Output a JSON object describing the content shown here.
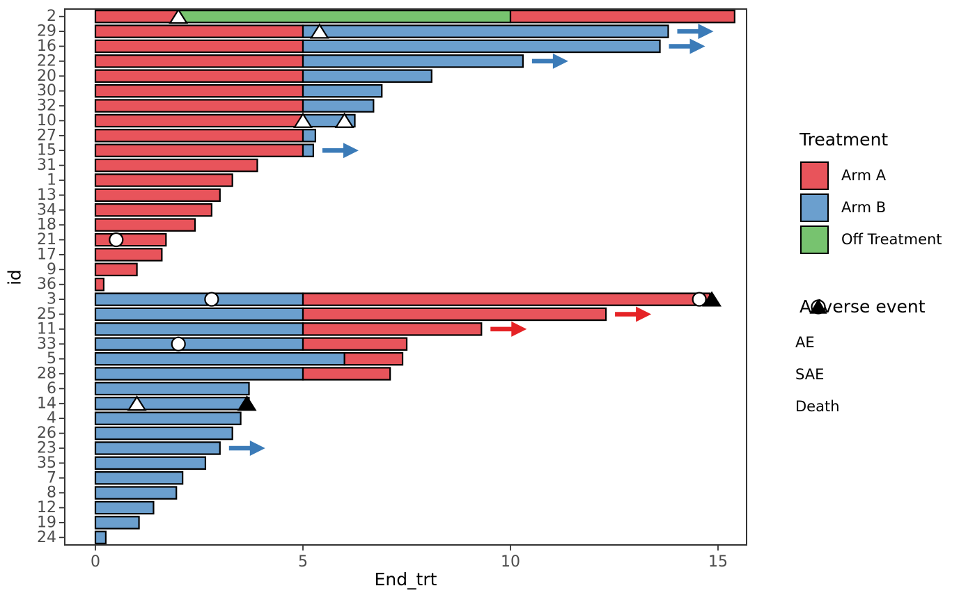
{
  "chart_data": {
    "type": "bar",
    "subtype": "horizontal-swimmer-plot",
    "xlabel": "End_trt",
    "ylabel": "id",
    "xticks": [
      0,
      5,
      10,
      15
    ],
    "xlim": [
      -0.74,
      15.72
    ],
    "grid": "off",
    "colors": {
      "Arm A": "#E8545B",
      "Arm B": "#6B9FCE",
      "Off Treatment": "#77C36F",
      "arrow_arm_a": "#E52326",
      "arrow_arm_b": "#3B7BB8",
      "bar_stroke": "#000000",
      "panel_border": "#333333",
      "tick_label": "#4D4D4D"
    },
    "patients": [
      {
        "id": "2",
        "segments": [
          {
            "arm": "Arm A",
            "start": 0,
            "end": 2
          },
          {
            "arm": "Off Treatment",
            "start": 2,
            "end": 10
          },
          {
            "arm": "Arm A",
            "start": 10,
            "end": 15.4
          }
        ],
        "events": [
          {
            "type": "SAE",
            "x": 2
          }
        ],
        "ongoing": false
      },
      {
        "id": "29",
        "segments": [
          {
            "arm": "Arm A",
            "start": 0,
            "end": 5
          },
          {
            "arm": "Arm B",
            "start": 5,
            "end": 13.8
          }
        ],
        "events": [
          {
            "type": "SAE",
            "x": 5.4
          }
        ],
        "ongoing": true
      },
      {
        "id": "16",
        "segments": [
          {
            "arm": "Arm A",
            "start": 0,
            "end": 5
          },
          {
            "arm": "Arm B",
            "start": 5,
            "end": 13.6
          }
        ],
        "events": [],
        "ongoing": true
      },
      {
        "id": "22",
        "segments": [
          {
            "arm": "Arm A",
            "start": 0,
            "end": 5
          },
          {
            "arm": "Arm B",
            "start": 5,
            "end": 10.3
          }
        ],
        "events": [],
        "ongoing": true
      },
      {
        "id": "20",
        "segments": [
          {
            "arm": "Arm A",
            "start": 0,
            "end": 5
          },
          {
            "arm": "Arm B",
            "start": 5,
            "end": 8.1
          }
        ],
        "events": [],
        "ongoing": false
      },
      {
        "id": "30",
        "segments": [
          {
            "arm": "Arm A",
            "start": 0,
            "end": 5
          },
          {
            "arm": "Arm B",
            "start": 5,
            "end": 6.9
          }
        ],
        "events": [],
        "ongoing": false
      },
      {
        "id": "32",
        "segments": [
          {
            "arm": "Arm A",
            "start": 0,
            "end": 5
          },
          {
            "arm": "Arm B",
            "start": 5,
            "end": 6.7
          }
        ],
        "events": [],
        "ongoing": false
      },
      {
        "id": "10",
        "segments": [
          {
            "arm": "Arm A",
            "start": 0,
            "end": 5
          },
          {
            "arm": "Arm B",
            "start": 5,
            "end": 6.25
          }
        ],
        "events": [
          {
            "type": "SAE",
            "x": 5
          },
          {
            "type": "SAE",
            "x": 6
          }
        ],
        "ongoing": false
      },
      {
        "id": "27",
        "segments": [
          {
            "arm": "Arm A",
            "start": 0,
            "end": 5
          },
          {
            "arm": "Arm B",
            "start": 5,
            "end": 5.3
          }
        ],
        "events": [],
        "ongoing": false
      },
      {
        "id": "15",
        "segments": [
          {
            "arm": "Arm A",
            "start": 0,
            "end": 5
          },
          {
            "arm": "Arm B",
            "start": 5,
            "end": 5.25
          }
        ],
        "events": [],
        "ongoing": true
      },
      {
        "id": "31",
        "segments": [
          {
            "arm": "Arm A",
            "start": 0,
            "end": 3.9
          }
        ],
        "events": [],
        "ongoing": false
      },
      {
        "id": "1",
        "segments": [
          {
            "arm": "Arm A",
            "start": 0,
            "end": 3.3
          }
        ],
        "events": [],
        "ongoing": false
      },
      {
        "id": "13",
        "segments": [
          {
            "arm": "Arm A",
            "start": 0,
            "end": 3
          }
        ],
        "events": [],
        "ongoing": false
      },
      {
        "id": "34",
        "segments": [
          {
            "arm": "Arm A",
            "start": 0,
            "end": 2.8
          }
        ],
        "events": [],
        "ongoing": false
      },
      {
        "id": "18",
        "segments": [
          {
            "arm": "Arm A",
            "start": 0,
            "end": 2.4
          }
        ],
        "events": [],
        "ongoing": false
      },
      {
        "id": "21",
        "segments": [
          {
            "arm": "Arm A",
            "start": 0,
            "end": 1.7
          }
        ],
        "events": [
          {
            "type": "AE",
            "x": 0.5
          }
        ],
        "ongoing": false
      },
      {
        "id": "17",
        "segments": [
          {
            "arm": "Arm A",
            "start": 0,
            "end": 1.6
          }
        ],
        "events": [],
        "ongoing": false
      },
      {
        "id": "9",
        "segments": [
          {
            "arm": "Arm A",
            "start": 0,
            "end": 1
          }
        ],
        "events": [],
        "ongoing": false
      },
      {
        "id": "36",
        "segments": [
          {
            "arm": "Arm A",
            "start": 0,
            "end": 0.2
          }
        ],
        "events": [],
        "ongoing": false
      },
      {
        "id": "3",
        "segments": [
          {
            "arm": "Arm B",
            "start": 0,
            "end": 5
          },
          {
            "arm": "Arm A",
            "start": 5,
            "end": 14.8
          }
        ],
        "events": [
          {
            "type": "AE",
            "x": 2.8
          },
          {
            "type": "AE",
            "x": 14.55
          },
          {
            "type": "Death",
            "x": 14.85
          }
        ],
        "ongoing": false
      },
      {
        "id": "25",
        "segments": [
          {
            "arm": "Arm B",
            "start": 0,
            "end": 5
          },
          {
            "arm": "Arm A",
            "start": 5,
            "end": 12.3
          }
        ],
        "events": [],
        "ongoing": true
      },
      {
        "id": "11",
        "segments": [
          {
            "arm": "Arm B",
            "start": 0,
            "end": 5
          },
          {
            "arm": "Arm A",
            "start": 5,
            "end": 9.3
          }
        ],
        "events": [],
        "ongoing": true
      },
      {
        "id": "33",
        "segments": [
          {
            "arm": "Arm B",
            "start": 0,
            "end": 5
          },
          {
            "arm": "Arm A",
            "start": 5,
            "end": 7.5
          }
        ],
        "events": [
          {
            "type": "AE",
            "x": 2
          }
        ],
        "ongoing": false
      },
      {
        "id": "5",
        "segments": [
          {
            "arm": "Arm B",
            "start": 0,
            "end": 6
          },
          {
            "arm": "Arm A",
            "start": 6,
            "end": 7.4
          }
        ],
        "events": [],
        "ongoing": false
      },
      {
        "id": "28",
        "segments": [
          {
            "arm": "Arm B",
            "start": 0,
            "end": 5
          },
          {
            "arm": "Arm A",
            "start": 5,
            "end": 7.1
          }
        ],
        "events": [],
        "ongoing": false
      },
      {
        "id": "6",
        "segments": [
          {
            "arm": "Arm B",
            "start": 0,
            "end": 3.7
          }
        ],
        "events": [],
        "ongoing": false
      },
      {
        "id": "14",
        "segments": [
          {
            "arm": "Arm B",
            "start": 0,
            "end": 3.7
          }
        ],
        "events": [
          {
            "type": "SAE",
            "x": 1
          },
          {
            "type": "Death",
            "x": 3.65
          }
        ],
        "ongoing": false
      },
      {
        "id": "4",
        "segments": [
          {
            "arm": "Arm B",
            "start": 0,
            "end": 3.5
          }
        ],
        "events": [],
        "ongoing": false
      },
      {
        "id": "26",
        "segments": [
          {
            "arm": "Arm B",
            "start": 0,
            "end": 3.3
          }
        ],
        "events": [],
        "ongoing": false
      },
      {
        "id": "23",
        "segments": [
          {
            "arm": "Arm B",
            "start": 0,
            "end": 3
          }
        ],
        "events": [],
        "ongoing": true
      },
      {
        "id": "35",
        "segments": [
          {
            "arm": "Arm B",
            "start": 0,
            "end": 2.65
          }
        ],
        "events": [],
        "ongoing": false
      },
      {
        "id": "7",
        "segments": [
          {
            "arm": "Arm B",
            "start": 0,
            "end": 2.1
          }
        ],
        "events": [],
        "ongoing": false
      },
      {
        "id": "8",
        "segments": [
          {
            "arm": "Arm B",
            "start": 0,
            "end": 1.95
          }
        ],
        "events": [],
        "ongoing": false
      },
      {
        "id": "12",
        "segments": [
          {
            "arm": "Arm B",
            "start": 0,
            "end": 1.4
          }
        ],
        "events": [],
        "ongoing": false
      },
      {
        "id": "19",
        "segments": [
          {
            "arm": "Arm B",
            "start": 0,
            "end": 1.05
          }
        ],
        "events": [],
        "ongoing": false
      },
      {
        "id": "24",
        "segments": [
          {
            "arm": "Arm B",
            "start": 0,
            "end": 0.25
          }
        ],
        "events": [],
        "ongoing": false
      }
    ],
    "legend_treatment": {
      "title": "Treatment",
      "items": [
        {
          "label": "Arm A",
          "color": "#E8545B"
        },
        {
          "label": "Arm B",
          "color": "#6B9FCE"
        },
        {
          "label": "Off Treatment",
          "color": "#77C36F"
        }
      ]
    },
    "legend_adverse": {
      "title": "Adverse event",
      "items": [
        {
          "label": "AE",
          "marker": "open-circle"
        },
        {
          "label": "SAE",
          "marker": "open-triangle"
        },
        {
          "label": "Death",
          "marker": "filled-triangle"
        }
      ]
    }
  }
}
